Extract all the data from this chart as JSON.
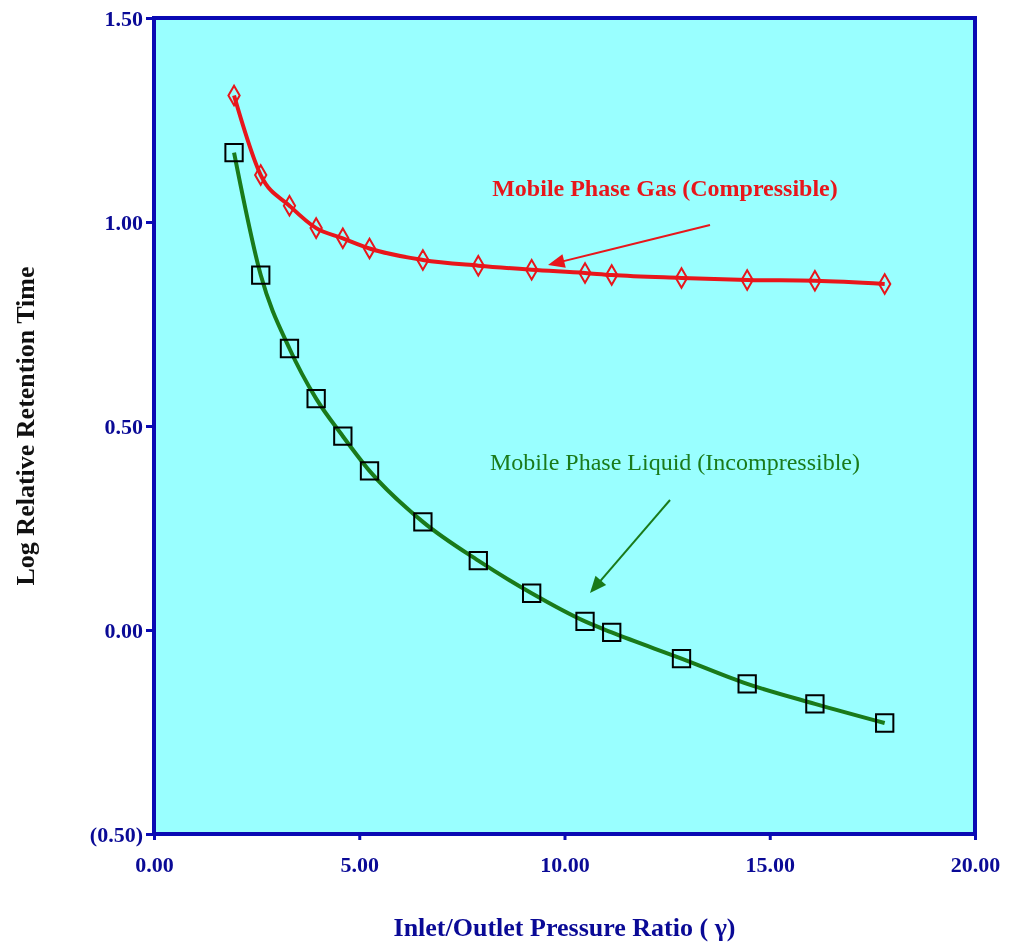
{
  "chart_data": {
    "type": "line",
    "xlabel": "Inlet/Outlet Pressure Ratio ( γ)",
    "ylabel": "Log Relative Retention Time",
    "xlim": [
      0,
      20
    ],
    "ylim": [
      -0.5,
      1.5
    ],
    "xticks": [
      {
        "value": 0,
        "label": "0.00"
      },
      {
        "value": 5,
        "label": "5.00"
      },
      {
        "value": 10,
        "label": "10.00"
      },
      {
        "value": 15,
        "label": "15.00"
      },
      {
        "value": 20,
        "label": "20.00"
      }
    ],
    "yticks": [
      {
        "value": -0.5,
        "label": "(0.50)"
      },
      {
        "value": 0,
        "label": "0.00"
      },
      {
        "value": 0.5,
        "label": "0.50"
      },
      {
        "value": 1,
        "label": "1.00"
      },
      {
        "value": 1.5,
        "label": "1.50"
      }
    ],
    "grid": false,
    "line_style": "solid",
    "x": [
      1.95,
      2.6,
      3.3,
      3.95,
      4.6,
      5.25,
      6.55,
      7.9,
      9.2,
      10.5,
      11.15,
      12.85,
      14.45,
      16.1,
      17.8
    ],
    "series": [
      {
        "name": "Mobile Phase Gas (Compressible)",
        "color": "#e8161b",
        "marker": "diamond",
        "values": [
          1.31,
          1.115,
          1.04,
          0.985,
          0.96,
          0.935,
          0.907,
          0.893,
          0.883,
          0.875,
          0.87,
          0.863,
          0.858,
          0.856,
          0.848
        ]
      },
      {
        "name": "Mobile Phase Liquid (Incompressible)",
        "color": "#1a7a1a",
        "marker": "square",
        "values": [
          1.17,
          0.87,
          0.69,
          0.567,
          0.475,
          0.39,
          0.265,
          0.17,
          0.09,
          0.021,
          -0.006,
          -0.07,
          -0.132,
          -0.181,
          -0.228
        ]
      }
    ]
  }
}
